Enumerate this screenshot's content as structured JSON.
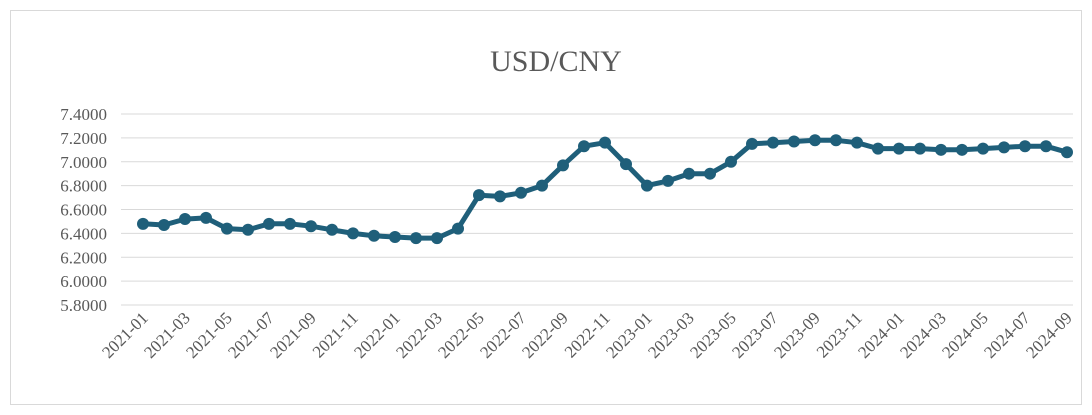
{
  "chart_data": {
    "type": "line",
    "title": "USD/CNY",
    "xlabel": "",
    "ylabel": "",
    "ylim": [
      5.8,
      7.4
    ],
    "yticks": [
      "7.4000",
      "7.2000",
      "7.0000",
      "6.8000",
      "6.6000",
      "6.4000",
      "6.2000",
      "6.0000",
      "5.8000"
    ],
    "grid": true,
    "x": [
      "2021-01",
      "2021-02",
      "2021-03",
      "2021-04",
      "2021-05",
      "2021-06",
      "2021-07",
      "2021-08",
      "2021-09",
      "2021-10",
      "2021-11",
      "2021-12",
      "2022-01",
      "2022-02",
      "2022-03",
      "2022-04",
      "2022-05",
      "2022-06",
      "2022-07",
      "2022-08",
      "2022-09",
      "2022-10",
      "2022-11",
      "2022-12",
      "2023-01",
      "2023-02",
      "2023-03",
      "2023-04",
      "2023-05",
      "2023-06",
      "2023-07",
      "2023-08",
      "2023-09",
      "2023-10",
      "2023-11",
      "2023-12",
      "2024-01",
      "2024-02",
      "2024-03",
      "2024-04",
      "2024-05",
      "2024-06",
      "2024-07",
      "2024-08",
      "2024-09"
    ],
    "xtick_labels": [
      "2021-01",
      "2021-03",
      "2021-05",
      "2021-07",
      "2021-09",
      "2021-11",
      "2022-01",
      "2022-03",
      "2022-05",
      "2022-07",
      "2022-09",
      "2022-11",
      "2023-01",
      "2023-03",
      "2023-05",
      "2023-07",
      "2023-09",
      "2023-11",
      "2024-01",
      "2024-03",
      "2024-05",
      "2024-07",
      "2024-09"
    ],
    "series": [
      {
        "color": "#1f5f7a",
        "values": [
          6.48,
          6.47,
          6.52,
          6.53,
          6.44,
          6.43,
          6.48,
          6.48,
          6.46,
          6.43,
          6.4,
          6.38,
          6.37,
          6.36,
          6.36,
          6.44,
          6.72,
          6.71,
          6.74,
          6.8,
          6.97,
          7.13,
          7.16,
          6.98,
          6.8,
          6.84,
          6.9,
          6.9,
          7.0,
          7.15,
          7.16,
          7.17,
          7.18,
          7.18,
          7.16,
          7.11,
          7.11,
          7.11,
          7.1,
          7.1,
          7.11,
          7.12,
          7.13,
          7.13,
          7.08
        ]
      }
    ]
  }
}
